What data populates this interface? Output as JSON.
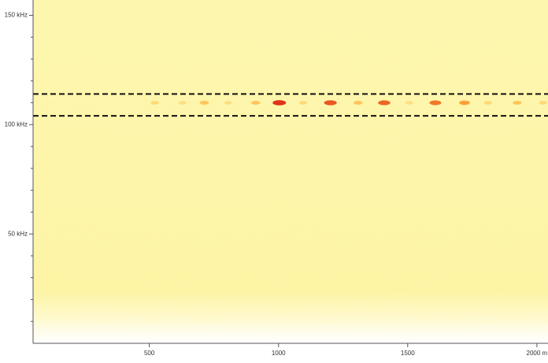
{
  "chart_data": {
    "type": "spectrogram",
    "x": [
      521,
      628,
      713,
      805,
      912,
      1003,
      1095,
      1201,
      1308,
      1409,
      1506,
      1607,
      1720,
      1811,
      1924,
      2024
    ],
    "y": [
      110,
      110,
      110,
      110,
      110,
      110,
      110,
      110,
      110,
      110,
      110,
      110,
      110,
      110,
      110,
      110
    ],
    "values": [
      0.2,
      0.15,
      0.35,
      0.15,
      0.35,
      0.9,
      0.2,
      0.8,
      0.35,
      0.75,
      0.15,
      0.7,
      0.55,
      0.2,
      0.35,
      0.2
    ],
    "colormap": [
      "#ffe680",
      "#ff9a1a",
      "#d61010"
    ],
    "xlim": [
      50,
      2043
    ],
    "ylim": [
      0,
      157
    ],
    "xticks": [
      500,
      1000,
      1500,
      {
        "value": 2000,
        "label": "2000 m"
      }
    ],
    "yticks": [
      {
        "value": 50,
        "label": "50 kHz"
      },
      {
        "value": 100,
        "label": "100 kHz"
      },
      {
        "value": 150,
        "label": "150 kHz"
      }
    ],
    "yminorticks": [
      10,
      20,
      30,
      40,
      60,
      70,
      80,
      90,
      110,
      120,
      130,
      140
    ],
    "hlines": [
      104,
      114
    ],
    "hline_color": "#111111"
  }
}
